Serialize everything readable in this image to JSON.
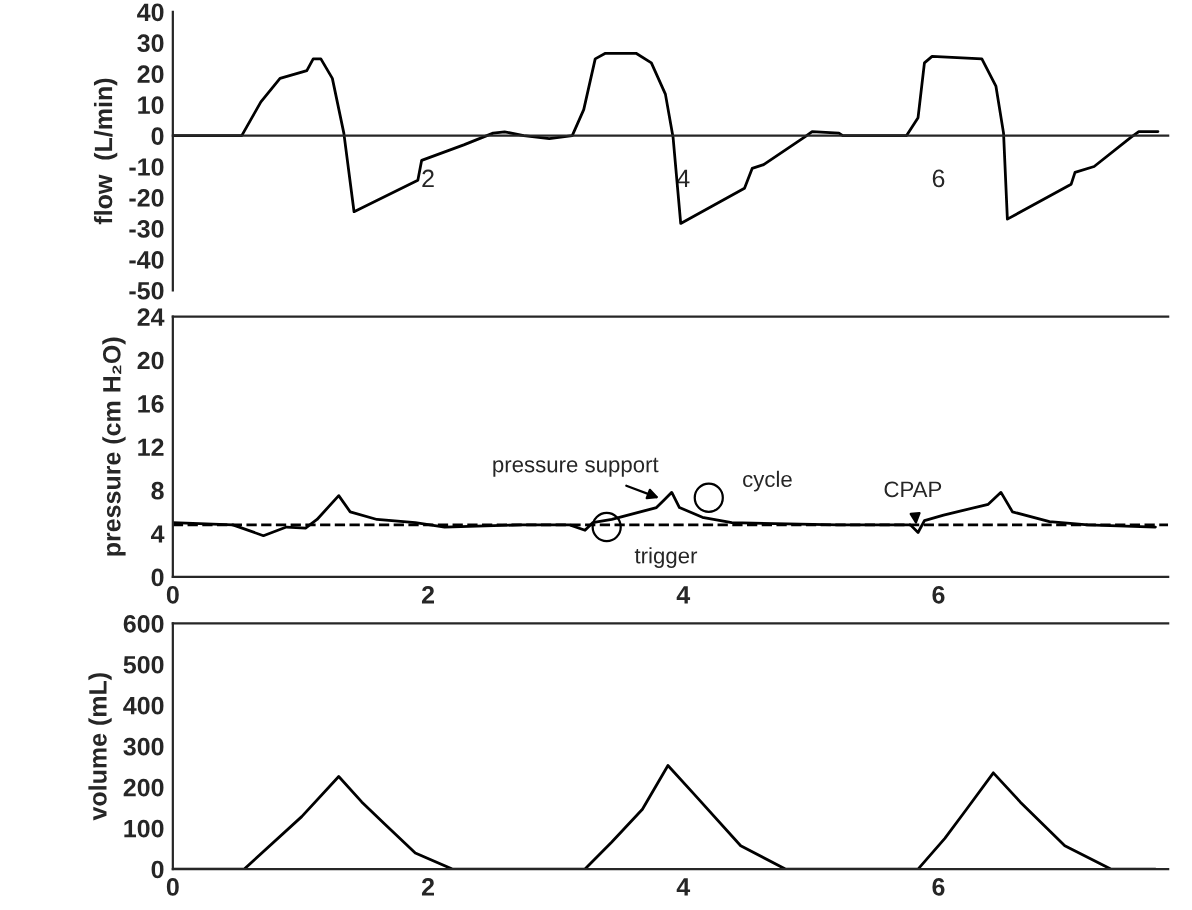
{
  "chart_data": [
    {
      "type": "line",
      "ylabel": "flow  (L/min)",
      "xlim": [
        0,
        7.8
      ],
      "ylim": [
        -50,
        40
      ],
      "xticks": [
        {
          "value": 0,
          "label": null
        },
        2,
        4,
        6
      ],
      "yticks": [
        -50,
        -40,
        -30,
        -20,
        -10,
        0,
        10,
        20,
        30,
        40
      ],
      "grid": false,
      "marker": "none",
      "line_style": "solid",
      "x": [
        0,
        0.54,
        0.69,
        0.84,
        1.01,
        1.05,
        1.1,
        1.16,
        1.25,
        1.34,
        1.42,
        1.92,
        1.95,
        2.28,
        2.51,
        2.6,
        2.75,
        2.95,
        3.13,
        3.22,
        3.31,
        3.39,
        3.63,
        3.75,
        3.86,
        3.92,
        3.98,
        4.48,
        4.54,
        4.63,
        4.95,
        5.01,
        5.22,
        5.25,
        5.75,
        5.84,
        5.89,
        5.95,
        6.34,
        6.45,
        6.51,
        6.54,
        7.04,
        7.07,
        7.22,
        7.51,
        7.57,
        7.72
      ],
      "series": [
        {
          "color": "#000000",
          "values": [
            0,
            0,
            10.9,
            18.5,
            20.5,
            21,
            24.8,
            24.8,
            18.5,
            0.8,
            -24.6,
            -14.4,
            -8,
            -3,
            0.8,
            1.2,
            0,
            -1,
            0,
            8.4,
            24.8,
            26.6,
            26.6,
            23.5,
            13.4,
            -0.5,
            -28.4,
            -17,
            -10.6,
            -9.4,
            -0.5,
            1.3,
            0.8,
            0,
            0,
            5.8,
            23.5,
            25.6,
            24.8,
            16,
            0.8,
            -27,
            -15.7,
            -11.9,
            -10,
            -0.5,
            1.3,
            1.3
          ]
        }
      ]
    },
    {
      "type": "line",
      "ylabel": "pressure (cm H₂O)",
      "xlim": [
        0,
        7.8
      ],
      "ylim": [
        0,
        24
      ],
      "xticks": [
        0,
        2,
        4,
        6
      ],
      "yticks": [
        0,
        4,
        8,
        12,
        16,
        20,
        24
      ],
      "grid": false,
      "marker": "none",
      "line_style": "solid",
      "x": [
        0,
        0.47,
        0.71,
        0.89,
        1.04,
        1.13,
        1.3,
        1.39,
        1.6,
        1.9,
        2.13,
        2.73,
        3.11,
        3.23,
        3.29,
        3.44,
        3.79,
        3.85,
        3.91,
        3.97,
        4.15,
        4.38,
        5.21,
        5.78,
        5.84,
        5.89,
        6.04,
        6.39,
        6.49,
        6.58,
        6.87,
        7.17,
        7.7
      ],
      "series": [
        {
          "color": "#000000",
          "values": [
            5,
            4.8,
            3.8,
            4.6,
            4.5,
            5.3,
            7.5,
            6,
            5.3,
            5,
            4.6,
            4.8,
            4.8,
            4.3,
            5,
            5.3,
            6.4,
            7.1,
            7.8,
            6.4,
            5.5,
            5,
            4.8,
            4.8,
            4.1,
            5.2,
            5.7,
            6.7,
            7.8,
            6,
            5.1,
            4.8,
            4.6
          ]
        }
      ],
      "ref_lines": [
        {
          "axis": "y",
          "value": 4.8,
          "label": null,
          "color": "#000000",
          "line_style": "dashed"
        }
      ],
      "annotations": [
        {
          "text": "pressure support",
          "x": 3.85,
          "y": 7.1
        },
        {
          "text": "cycle",
          "x": 4.2,
          "y": 7.3
        },
        {
          "text": "trigger",
          "x": 3.4,
          "y": 4.6
        },
        {
          "text": "CPAP",
          "x": 5.83,
          "y": 4.3
        }
      ]
    },
    {
      "type": "line",
      "ylabel": "volume (mL)",
      "xlim": [
        0,
        7.8
      ],
      "ylim": [
        0,
        600
      ],
      "xticks": [
        0,
        2,
        4,
        6
      ],
      "yticks": [
        0,
        100,
        200,
        300,
        400,
        500,
        600
      ],
      "grid": false,
      "marker": "none",
      "line_style": "solid",
      "x": [
        0,
        0.56,
        1.01,
        1.3,
        1.48,
        1.66,
        1.9,
        2.19,
        3.23,
        3.44,
        3.68,
        3.88,
        4.09,
        4.45,
        4.8,
        5.84,
        6.05,
        6.22,
        6.43,
        6.64,
        6.99,
        7.35,
        7.7
      ],
      "series": [
        {
          "color": "#000000",
          "values": [
            0,
            0,
            128,
            226,
            164,
            110,
            39,
            0,
            0,
            66,
            146,
            253,
            181,
            57,
            0,
            0,
            75,
            146,
            235,
            164,
            57,
            0,
            0
          ]
        }
      ]
    }
  ]
}
